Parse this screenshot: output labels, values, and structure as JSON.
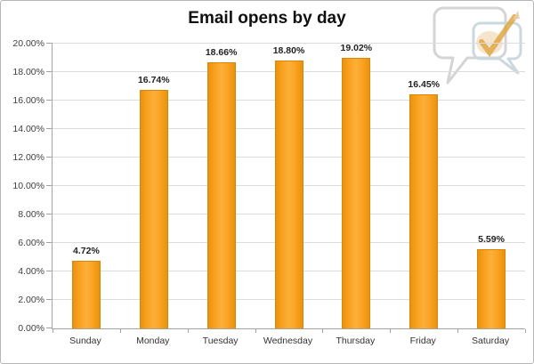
{
  "page": {
    "background": "#ffffff",
    "border_color": "#b6b6b6"
  },
  "chart_data": {
    "type": "bar",
    "title": "Email opens by day",
    "categories": [
      "Sunday",
      "Monday",
      "Tuesday",
      "Wednesday",
      "Thursday",
      "Friday",
      "Saturday"
    ],
    "values": [
      4.72,
      16.74,
      18.66,
      18.8,
      19.02,
      16.45,
      5.59
    ],
    "data_labels": [
      "4.72%",
      "16.74%",
      "18.66%",
      "18.80%",
      "19.02%",
      "16.45%",
      "5.59%"
    ],
    "xlabel": "",
    "ylabel": "",
    "ylim": [
      0,
      20
    ],
    "y_ticks": [
      {
        "value": 0,
        "label": "0.00%"
      },
      {
        "value": 2,
        "label": "2.00%"
      },
      {
        "value": 4,
        "label": "4.00%"
      },
      {
        "value": 6,
        "label": "6.00%"
      },
      {
        "value": 8,
        "label": "8.00%"
      },
      {
        "value": 10,
        "label": "10.00%"
      },
      {
        "value": 12,
        "label": "12.00%"
      },
      {
        "value": 14,
        "label": "14.00%"
      },
      {
        "value": 16,
        "label": "16.00%"
      },
      {
        "value": 18,
        "label": "18.00%"
      },
      {
        "value": 20,
        "label": "20.00%"
      }
    ],
    "grid": true,
    "legend": false,
    "bar_color": "#F8A01D",
    "bar_border_color": "#D8860B",
    "gridline_color": "#DCDCDC",
    "axis_color": "#A3A3A3",
    "value_label_color": "#222222",
    "tick_label_color": "#3F3F3F"
  },
  "logo": {
    "name": "speech-bubbles-checkmark-logo",
    "bubble_color": "#D2D2D2",
    "small_bubble_color": "#C9D8DE",
    "check_color": "#DEA33C",
    "blob_color": "#EFD9B4"
  }
}
